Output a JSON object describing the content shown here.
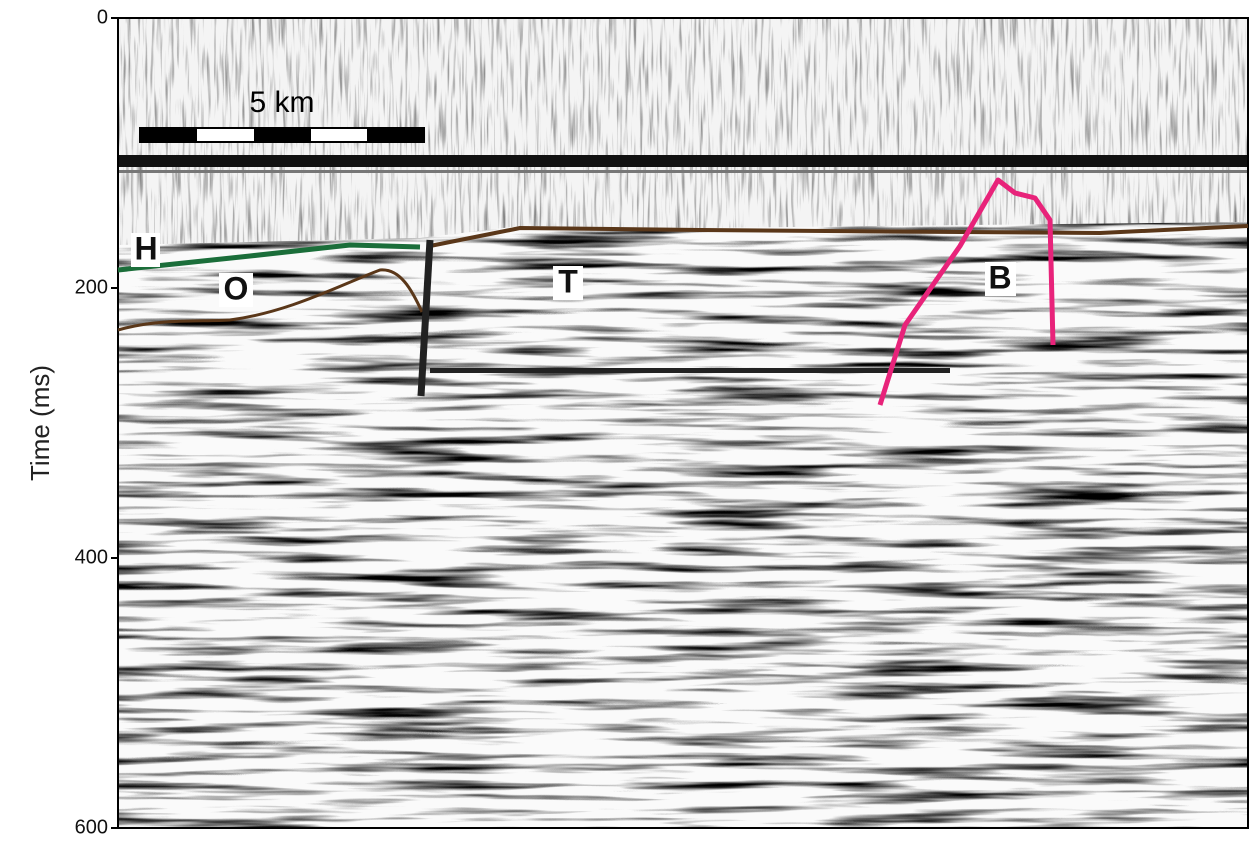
{
  "chart_data": {
    "type": "seismic-section",
    "ylabel": "Time (ms)",
    "ylim": [
      0,
      600
    ],
    "yticks": [
      0,
      200,
      400,
      600
    ],
    "y_inverted": true,
    "scale_bar": "5 km",
    "annotations": [
      "H",
      "O",
      "T",
      "B"
    ]
  }
}
